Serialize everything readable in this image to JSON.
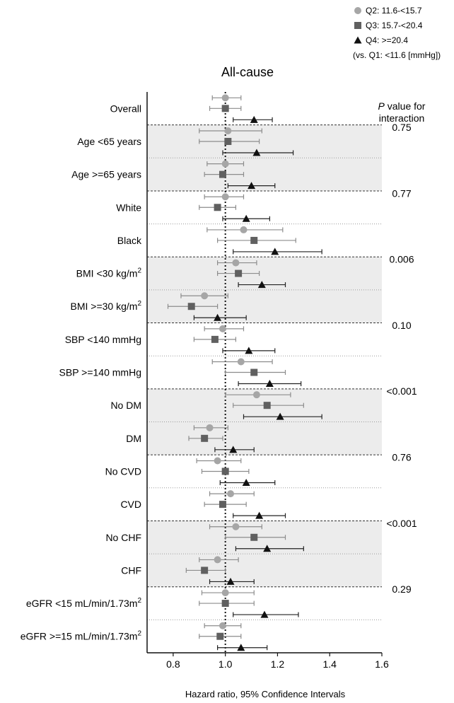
{
  "chart_data": {
    "type": "forest",
    "title": "All-cause",
    "xlabel": "Hazard ratio, 95% Confidence Intervals",
    "xlim": [
      0.7,
      1.6
    ],
    "xticks": [
      0.8,
      1.0,
      1.2,
      1.4,
      1.6
    ],
    "xtick_labels": [
      "0.8",
      "1.0",
      "1.2",
      "1.4",
      "1.6"
    ],
    "reference_line": 1.0,
    "legend": {
      "position": "top-right",
      "items": [
        {
          "label": "Q2: 11.6-<15.7",
          "marker": "circle",
          "color": "#a6a6a6"
        },
        {
          "label": "Q3: 15.7-<20.4",
          "marker": "square",
          "color": "#606060"
        },
        {
          "label": "Q4: >=20.4",
          "marker": "triangle",
          "color": "#111111"
        }
      ],
      "note": "(vs. Q1: <11.6 [mmHg])"
    },
    "interaction_header": {
      "italic": "P",
      "rest": " value for",
      "line2": "interaction"
    },
    "groups": [
      {
        "label": "Overall",
        "shaded": false,
        "divider_after": "dashed",
        "p_value": "",
        "hr": {
          "Q2": [
            1.0,
            0.95,
            1.06
          ],
          "Q3": [
            1.0,
            0.94,
            1.06
          ],
          "Q4": [
            1.11,
            1.03,
            1.18
          ]
        }
      },
      {
        "label": "Age <65 years",
        "shaded": true,
        "divider_after": "dotted",
        "p_value": "0.75",
        "hr": {
          "Q2": [
            1.01,
            0.9,
            1.14
          ],
          "Q3": [
            1.01,
            0.9,
            1.13
          ],
          "Q4": [
            1.12,
            0.99,
            1.26
          ]
        }
      },
      {
        "label": "Age >=65 years",
        "shaded": true,
        "divider_after": "dashed",
        "p_value": "",
        "hr": {
          "Q2": [
            1.0,
            0.93,
            1.07
          ],
          "Q3": [
            0.99,
            0.92,
            1.07
          ],
          "Q4": [
            1.1,
            1.01,
            1.19
          ]
        }
      },
      {
        "label": "White",
        "shaded": false,
        "divider_after": "dotted",
        "p_value": "0.77",
        "hr": {
          "Q2": [
            1.0,
            0.92,
            1.07
          ],
          "Q3": [
            0.97,
            0.9,
            1.04
          ],
          "Q4": [
            1.08,
            0.99,
            1.17
          ]
        }
      },
      {
        "label": "Black",
        "shaded": false,
        "divider_after": "dashed",
        "p_value": "",
        "hr": {
          "Q2": [
            1.07,
            0.93,
            1.22
          ],
          "Q3": [
            1.11,
            0.97,
            1.27
          ],
          "Q4": [
            1.19,
            1.03,
            1.37
          ]
        }
      },
      {
        "label": "BMI <30 kg/m",
        "sup": "2",
        "shaded": true,
        "divider_after": "dotted",
        "p_value": "0.006",
        "hr": {
          "Q2": [
            1.04,
            0.97,
            1.12
          ],
          "Q3": [
            1.05,
            0.97,
            1.13
          ],
          "Q4": [
            1.14,
            1.05,
            1.23
          ]
        }
      },
      {
        "label": "BMI >=30 kg/m",
        "sup": "2",
        "shaded": true,
        "divider_after": "dashed",
        "p_value": "",
        "hr": {
          "Q2": [
            0.92,
            0.83,
            1.01
          ],
          "Q3": [
            0.87,
            0.78,
            0.97
          ],
          "Q4": [
            0.97,
            0.88,
            1.08
          ]
        }
      },
      {
        "label": "SBP <140 mmHg",
        "shaded": false,
        "divider_after": "dotted",
        "p_value": "0.10",
        "hr": {
          "Q2": [
            0.99,
            0.92,
            1.07
          ],
          "Q3": [
            0.96,
            0.88,
            1.04
          ],
          "Q4": [
            1.09,
            0.99,
            1.19
          ]
        }
      },
      {
        "label": "SBP >=140 mmHg",
        "shaded": false,
        "divider_after": "dashed",
        "p_value": "",
        "hr": {
          "Q2": [
            1.06,
            0.95,
            1.18
          ],
          "Q3": [
            1.11,
            1.0,
            1.23
          ],
          "Q4": [
            1.17,
            1.05,
            1.29
          ]
        }
      },
      {
        "label": "No DM",
        "shaded": true,
        "divider_after": "dotted",
        "p_value": "<0.001",
        "hr": {
          "Q2": [
            1.12,
            1.0,
            1.25
          ],
          "Q3": [
            1.16,
            1.03,
            1.3
          ],
          "Q4": [
            1.21,
            1.07,
            1.37
          ]
        }
      },
      {
        "label": "DM",
        "shaded": true,
        "divider_after": "dashed",
        "p_value": "",
        "hr": {
          "Q2": [
            0.94,
            0.88,
            1.01
          ],
          "Q3": [
            0.92,
            0.86,
            0.99
          ],
          "Q4": [
            1.03,
            0.96,
            1.11
          ]
        }
      },
      {
        "label": "No CVD",
        "shaded": false,
        "divider_after": "dotted",
        "p_value": "0.76",
        "hr": {
          "Q2": [
            0.97,
            0.89,
            1.06
          ],
          "Q3": [
            1.0,
            0.91,
            1.09
          ],
          "Q4": [
            1.08,
            0.98,
            1.19
          ]
        }
      },
      {
        "label": "CVD",
        "shaded": false,
        "divider_after": "dashed",
        "p_value": "",
        "hr": {
          "Q2": [
            1.02,
            0.94,
            1.11
          ],
          "Q3": [
            0.99,
            0.92,
            1.08
          ],
          "Q4": [
            1.13,
            1.03,
            1.23
          ]
        }
      },
      {
        "label": "No CHF",
        "shaded": true,
        "divider_after": "dotted",
        "p_value": "<0.001",
        "hr": {
          "Q2": [
            1.04,
            0.94,
            1.14
          ],
          "Q3": [
            1.11,
            1.0,
            1.23
          ],
          "Q4": [
            1.16,
            1.04,
            1.3
          ]
        }
      },
      {
        "label": "CHF",
        "shaded": true,
        "divider_after": "dashed",
        "p_value": "",
        "hr": {
          "Q2": [
            0.97,
            0.9,
            1.05
          ],
          "Q3": [
            0.92,
            0.85,
            1.0
          ],
          "Q4": [
            1.02,
            0.94,
            1.11
          ]
        }
      },
      {
        "label": "eGFR <15 mL/min/1.73m",
        "sup": "2",
        "shaded": false,
        "divider_after": "dotted",
        "p_value": "0.29",
        "hr": {
          "Q2": [
            1.0,
            0.91,
            1.11
          ],
          "Q3": [
            1.0,
            0.9,
            1.11
          ],
          "Q4": [
            1.15,
            1.03,
            1.28
          ]
        }
      },
      {
        "label": "eGFR >=15 mL/min/1.73m",
        "sup": "2",
        "shaded": false,
        "divider_after": "",
        "p_value": "",
        "hr": {
          "Q2": [
            0.99,
            0.92,
            1.06
          ],
          "Q3": [
            0.98,
            0.9,
            1.06
          ],
          "Q4": [
            1.06,
            0.97,
            1.16
          ]
        }
      }
    ]
  }
}
